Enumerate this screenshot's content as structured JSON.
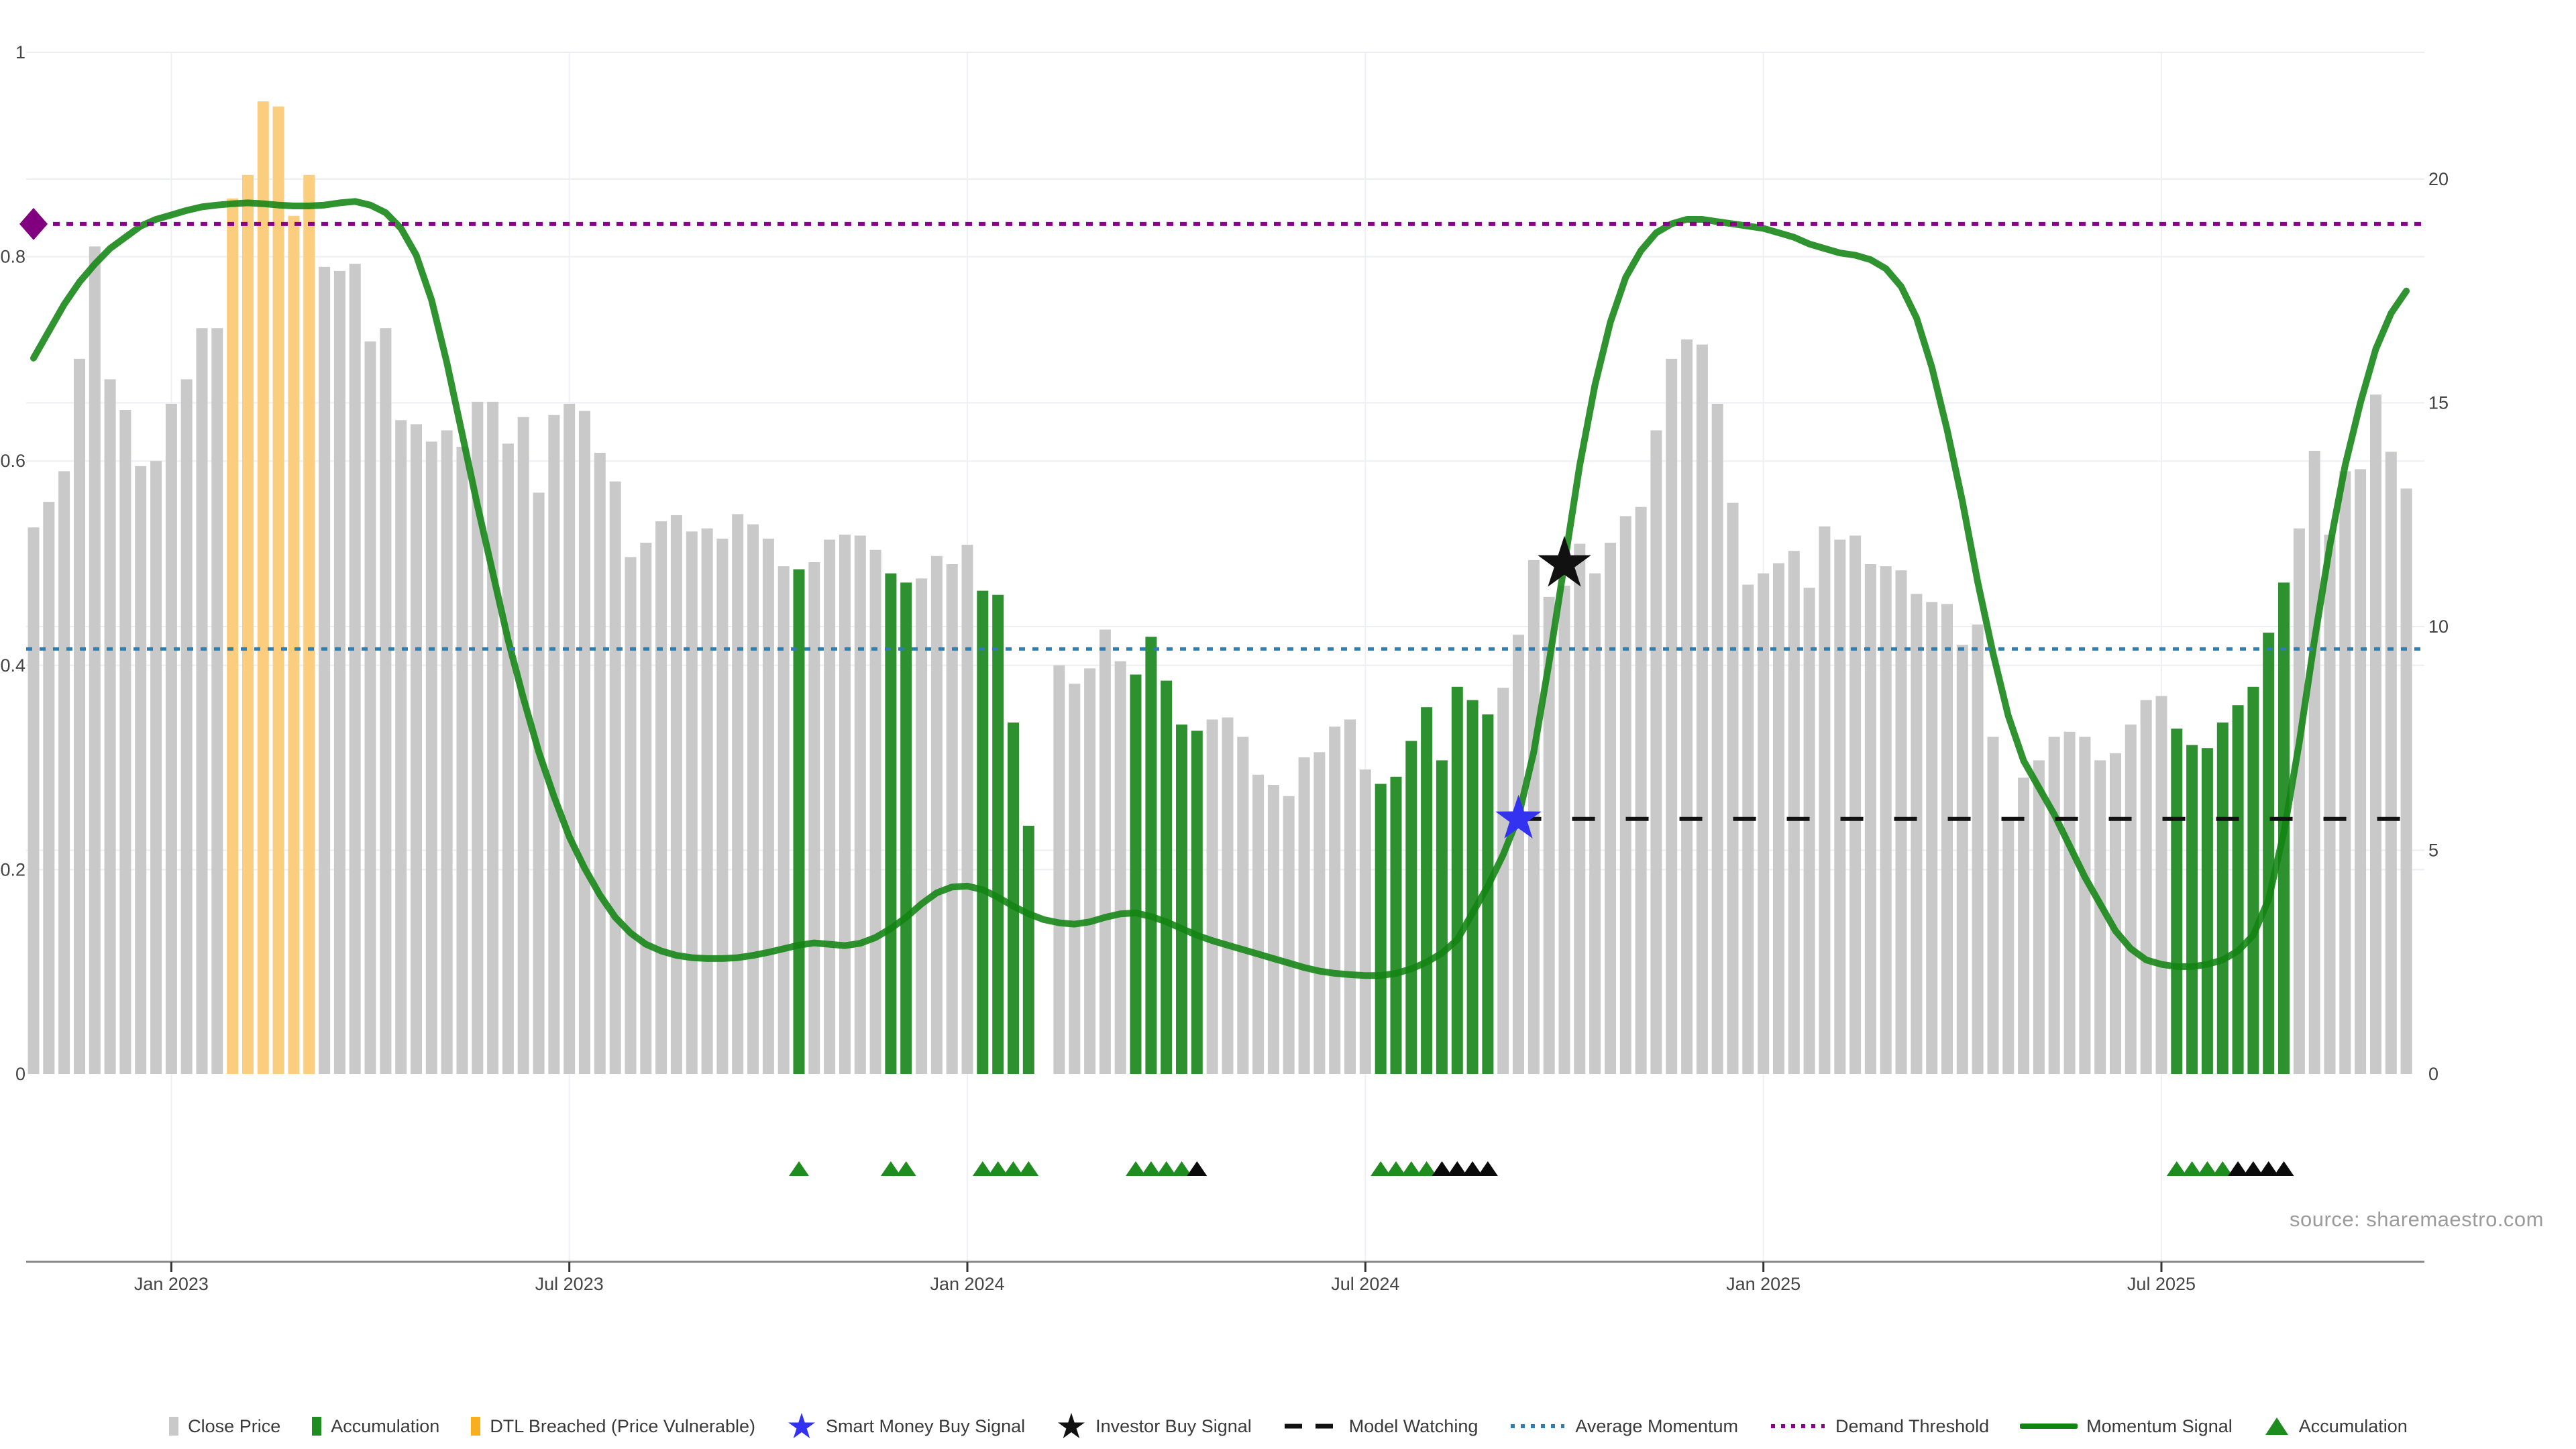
{
  "source_note": "source: sharemaestro.com",
  "colors": {
    "close_price_bar": "#c9c9c9",
    "accumulation_bar": "#2e9130",
    "dtl_breached_bar": "#fbcd7f",
    "momentum_line": "#128412",
    "demand_threshold": "#8a008a",
    "average_momentum": "#2e7eb4",
    "model_watching": "#111111",
    "smart_money_star": "#3232f0",
    "investor_star": "#111111",
    "triangle_green": "#1e8c1e",
    "triangle_black": "#0a0a0a",
    "axis_line": "#888888",
    "tick_text": "#444444",
    "grid": "#eceef3",
    "grid_vertical": "#eef0f5"
  },
  "legend": {
    "items": [
      {
        "label": "Close Price",
        "swatch": "square",
        "color": "#c9c9c9"
      },
      {
        "label": "Accumulation",
        "swatch": "square",
        "color": "#1e8c1e"
      },
      {
        "label": "DTL Breached (Price Vulnerable)",
        "swatch": "square",
        "color": "#f9ae1d"
      },
      {
        "label": "Smart Money Buy Signal",
        "swatch": "star",
        "color": "#3232f0"
      },
      {
        "label": "Investor Buy Signal",
        "swatch": "star",
        "color": "#111111"
      },
      {
        "label": "Model Watching",
        "swatch": "dashed-line",
        "color": "#111111"
      },
      {
        "label": "Average Momentum",
        "swatch": "dotted-line",
        "color": "#2e7eb4"
      },
      {
        "label": "Demand Threshold",
        "swatch": "dotted-line",
        "color": "#8a008a"
      },
      {
        "label": "Momentum Signal",
        "swatch": "solid-line",
        "color": "#128412"
      },
      {
        "label": "Accumulation",
        "swatch": "triangle",
        "color": "#1e8c1e"
      }
    ]
  },
  "chart_data": {
    "type": "bar",
    "subtype": "weekly price bars + momentum oscillator line",
    "x_ticks": [
      {
        "index": 9,
        "label": "Jan 2023"
      },
      {
        "index": 35,
        "label": "Jul 2023"
      },
      {
        "index": 61,
        "label": "Jan 2024"
      },
      {
        "index": 87,
        "label": "Jul 2024"
      },
      {
        "index": 113,
        "label": "Jan 2025"
      },
      {
        "index": 139,
        "label": "Jul 2025"
      }
    ],
    "y_left": {
      "ticks": [
        0,
        0.2,
        0.4,
        0.6,
        0.8,
        1
      ],
      "labels": [
        "0",
        "0.2",
        "0.4",
        "0.6",
        "0.8",
        "1"
      ],
      "range": [
        0,
        1
      ]
    },
    "y_right": {
      "ticks": [
        0,
        5,
        10,
        15,
        20
      ],
      "labels": [
        "0",
        "5",
        "10",
        "15",
        "20"
      ],
      "range": [
        0,
        20
      ]
    },
    "grid": "on",
    "legend_position": "bottom-center",
    "bars": {
      "name": "Close Price (normalized, left axis)",
      "values": [
        0.535,
        0.56,
        0.59,
        0.7,
        0.81,
        0.68,
        0.65,
        0.595,
        0.6,
        0.656,
        0.68,
        0.73,
        0.73,
        0.857,
        0.88,
        0.952,
        0.947,
        0.84,
        0.88,
        0.79,
        0.786,
        0.793,
        0.717,
        0.73,
        0.64,
        0.636,
        0.619,
        0.63,
        0.614,
        0.658,
        0.658,
        0.617,
        0.643,
        0.569,
        0.645,
        0.656,
        0.649,
        0.608,
        0.58,
        0.506,
        0.52,
        0.541,
        0.547,
        0.531,
        0.534,
        0.524,
        0.548,
        0.538,
        0.524,
        0.497,
        0.494,
        0.501,
        0.523,
        0.528,
        0.527,
        0.513,
        0.49,
        0.481,
        0.485,
        0.507,
        0.499,
        0.518,
        0.473,
        0.469,
        0.344,
        0.243,
        null,
        0.4,
        0.382,
        0.397,
        0.435,
        0.404,
        0.391,
        0.428,
        0.385,
        0.342,
        0.336,
        0.347,
        0.349,
        0.33,
        0.293,
        0.283,
        0.272,
        0.31,
        0.315,
        0.34,
        0.347,
        0.298,
        0.284,
        0.291,
        0.326,
        0.359,
        0.307,
        0.379,
        0.366,
        0.352,
        0.378,
        0.43,
        0.503,
        0.467,
        0.478,
        0.519,
        0.49,
        0.52,
        0.546,
        0.555,
        0.63,
        0.7,
        0.719,
        0.714,
        0.656,
        0.559,
        0.479,
        0.49,
        0.5,
        0.512,
        0.476,
        0.536,
        0.523,
        0.527,
        0.499,
        0.497,
        0.493,
        0.47,
        0.462,
        0.46,
        0.42,
        0.44,
        0.33,
        0.251,
        0.29,
        0.307,
        0.33,
        0.335,
        0.33,
        0.307,
        0.314,
        0.342,
        0.366,
        0.37,
        0.338,
        0.322,
        0.319,
        0.344,
        0.361,
        0.379,
        0.432,
        0.481,
        0.534,
        0.61,
        0.528,
        0.59,
        0.592,
        0.665,
        0.609,
        0.573
      ],
      "accumulation_indices": [
        50,
        56,
        57,
        62,
        63,
        64,
        65,
        72,
        73,
        74,
        75,
        76,
        88,
        89,
        90,
        91,
        92,
        93,
        94,
        95,
        140,
        141,
        142,
        143,
        144,
        145,
        146,
        147
      ],
      "dtl_breached_indices": [
        13,
        14,
        15,
        16,
        17,
        18
      ],
      "missing_indices": [
        66
      ]
    },
    "momentum_signal": {
      "name": "Momentum Signal (right axis)",
      "values": [
        16.0,
        16.6,
        17.2,
        17.7,
        18.1,
        18.45,
        18.7,
        18.95,
        19.1,
        19.2,
        19.3,
        19.38,
        19.42,
        19.45,
        19.47,
        19.45,
        19.42,
        19.4,
        19.4,
        19.42,
        19.47,
        19.5,
        19.42,
        19.25,
        18.9,
        18.3,
        17.3,
        15.9,
        14.3,
        12.7,
        11.2,
        9.7,
        8.4,
        7.2,
        6.2,
        5.3,
        4.6,
        4.0,
        3.5,
        3.15,
        2.9,
        2.75,
        2.65,
        2.6,
        2.58,
        2.58,
        2.6,
        2.65,
        2.72,
        2.8,
        2.88,
        2.93,
        2.9,
        2.87,
        2.92,
        3.05,
        3.25,
        3.5,
        3.8,
        4.05,
        4.18,
        4.2,
        4.12,
        3.95,
        3.75,
        3.58,
        3.45,
        3.38,
        3.35,
        3.4,
        3.5,
        3.58,
        3.6,
        3.52,
        3.4,
        3.25,
        3.1,
        2.98,
        2.88,
        2.78,
        2.68,
        2.58,
        2.48,
        2.38,
        2.3,
        2.25,
        2.22,
        2.2,
        2.2,
        2.25,
        2.35,
        2.5,
        2.7,
        3.0,
        3.6,
        4.2,
        4.9,
        5.75,
        7.2,
        9.2,
        11.4,
        13.6,
        15.4,
        16.8,
        17.8,
        18.4,
        18.8,
        19.0,
        19.1,
        19.1,
        19.05,
        19.0,
        18.95,
        18.9,
        18.8,
        18.7,
        18.55,
        18.45,
        18.35,
        18.3,
        18.2,
        18.0,
        17.6,
        16.9,
        15.8,
        14.4,
        12.8,
        11.0,
        9.4,
        8.0,
        7.0,
        6.4,
        5.8,
        5.1,
        4.4,
        3.8,
        3.2,
        2.8,
        2.55,
        2.45,
        2.4,
        2.4,
        2.45,
        2.55,
        2.75,
        3.1,
        3.9,
        5.4,
        7.4,
        9.7,
        11.8,
        13.6,
        15.0,
        16.2,
        17.0,
        17.5
      ]
    },
    "threshold_lines": {
      "demand_threshold": {
        "axis": "left",
        "value": 0.832,
        "style": "dotted",
        "color": "#8a008a"
      },
      "average_momentum": {
        "axis": "right",
        "value": 9.5,
        "style": "dotted",
        "color": "#2e7eb4"
      },
      "model_watching": {
        "axis": "right",
        "value": 5.7,
        "style": "dashed",
        "color": "#111111",
        "start_index": 97
      }
    },
    "markers": {
      "demand_diamond": {
        "index": 0,
        "axis": "left",
        "value": 0.832,
        "shape": "diamond",
        "color": "#800080"
      },
      "smart_money_buy_signal": {
        "index": 97,
        "axis": "right",
        "value": 5.7,
        "shape": "star",
        "color": "#3232f0"
      },
      "investor_buy_signal": {
        "index": 100,
        "axis": "right",
        "value": 11.4,
        "shape": "star",
        "color": "#111111"
      }
    },
    "accumulation_triangles": {
      "green_indices": [
        50,
        56,
        57,
        62,
        63,
        64,
        65,
        72,
        73,
        74,
        75,
        88,
        89,
        90,
        91,
        140,
        141,
        142,
        143
      ],
      "black_indices": [
        76,
        92,
        93,
        94,
        95,
        144,
        145,
        146,
        147
      ]
    }
  }
}
